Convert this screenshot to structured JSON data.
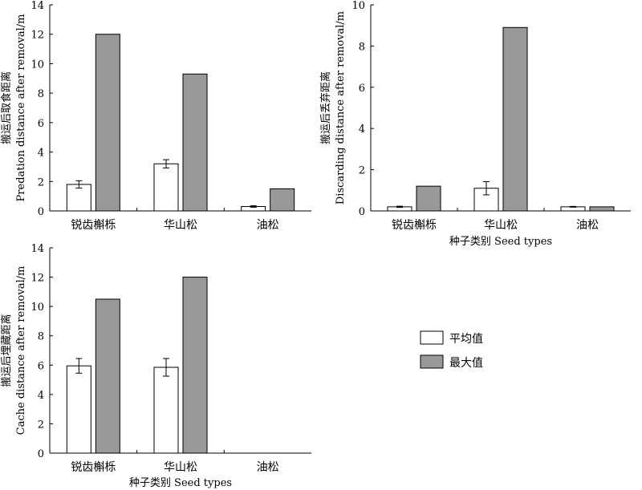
{
  "chart_data": [
    {
      "type": "bar",
      "categories": [
        "锐齿槲栎",
        "华山松",
        "油松"
      ],
      "series": [
        {
          "name": "平均值",
          "values": [
            1.8,
            3.2,
            0.3
          ],
          "errors": [
            0.25,
            0.28,
            0.05
          ],
          "color": "#ffffff"
        },
        {
          "name": "最大值",
          "values": [
            12.0,
            9.3,
            1.5
          ],
          "color": "#999999"
        }
      ],
      "ylabel_cn": "搬运后取食距离",
      "ylabel_en": "Predation distance after removal/m",
      "xlabel_cn": "",
      "xlabel_en": "",
      "ylim": [
        0,
        14
      ],
      "yticks": [
        0,
        2,
        4,
        6,
        8,
        10,
        12,
        14
      ]
    },
    {
      "type": "bar",
      "categories": [
        "锐齿槲栎",
        "华山松",
        "油松"
      ],
      "series": [
        {
          "name": "平均值",
          "values": [
            0.2,
            1.1,
            0.2
          ],
          "errors": [
            0.03,
            0.32,
            0.02
          ],
          "color": "#ffffff"
        },
        {
          "name": "最大值",
          "values": [
            1.2,
            8.9,
            0.2
          ],
          "color": "#999999"
        }
      ],
      "ylabel_cn": "搬运后丢弃距离",
      "ylabel_en": "Discarding distance after removal/m",
      "xlabel_cn": "种子类别",
      "xlabel_en": "Seed types",
      "ylim": [
        0,
        10
      ],
      "yticks": [
        0,
        2,
        4,
        6,
        8,
        10
      ]
    },
    {
      "type": "bar",
      "categories": [
        "锐齿槲栎",
        "华山松",
        "油松"
      ],
      "series": [
        {
          "name": "平均值",
          "values": [
            5.95,
            5.85,
            0
          ],
          "errors": [
            0.5,
            0.6,
            0
          ],
          "color": "#ffffff"
        },
        {
          "name": "最大值",
          "values": [
            10.5,
            12.0,
            0
          ],
          "color": "#999999"
        }
      ],
      "ylabel_cn": "搬运后埋藏距离",
      "ylabel_en": "Cache distance after removal/m",
      "xlabel_cn": "种子类别",
      "xlabel_en": "Seed types",
      "ylim": [
        0,
        14
      ],
      "yticks": [
        0,
        2,
        4,
        6,
        8,
        10,
        12,
        14
      ]
    }
  ],
  "legend": [
    {
      "label": "平均值",
      "color": "#ffffff"
    },
    {
      "label": "最大值",
      "color": "#999999"
    }
  ]
}
